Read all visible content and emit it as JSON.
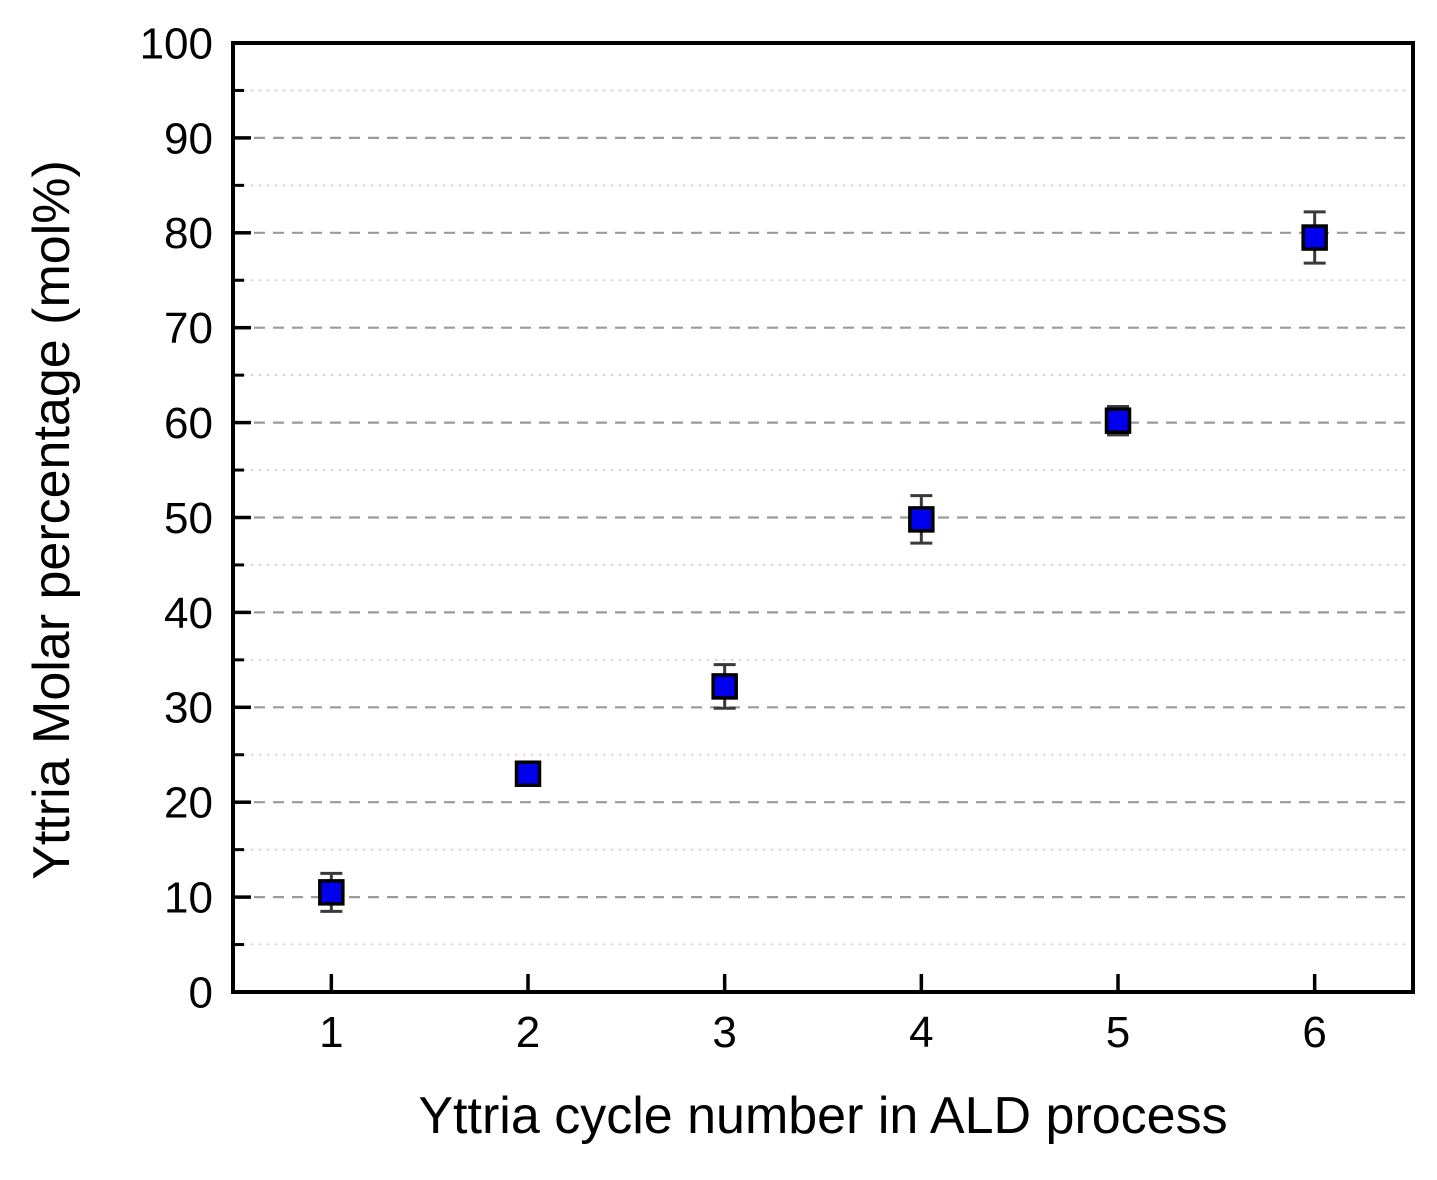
{
  "chart_data": {
    "type": "scatter",
    "title": "",
    "xlabel": "Yttria cycle number in ALD process",
    "ylabel": "Yttria Molar percentage (mol%)",
    "xlim": [
      0.5,
      6.5
    ],
    "ylim": [
      0,
      100
    ],
    "x_major_ticks": [
      1,
      2,
      3,
      4,
      5,
      6
    ],
    "y_major_ticks": [
      0,
      10,
      20,
      30,
      40,
      50,
      60,
      70,
      80,
      90,
      100
    ],
    "y_minor_ticks": [
      5,
      15,
      25,
      35,
      45,
      55,
      65,
      75,
      85,
      95
    ],
    "grid": {
      "horizontal_major": "dashed",
      "horizontal_minor": "dotted",
      "vertical": "none"
    },
    "legend": "none",
    "series": [
      {
        "name": "Yttria molar percentage",
        "marker": "filled-square",
        "x": [
          1,
          2,
          3,
          4,
          5,
          6
        ],
        "y": [
          10.5,
          23.0,
          32.2,
          49.8,
          60.2,
          79.5
        ],
        "y_err": [
          2.0,
          1.0,
          2.3,
          2.5,
          1.5,
          2.7
        ]
      }
    ],
    "colors": {
      "marker_fill": "#0000EE",
      "marker_edge": "#000000",
      "error_bar": "#3A3A3A",
      "axis": "#000000",
      "grid_major": "#9A9A9A",
      "grid_minor": "#D6D6D6",
      "background": "#FFFFFF",
      "text": "#000000"
    }
  }
}
